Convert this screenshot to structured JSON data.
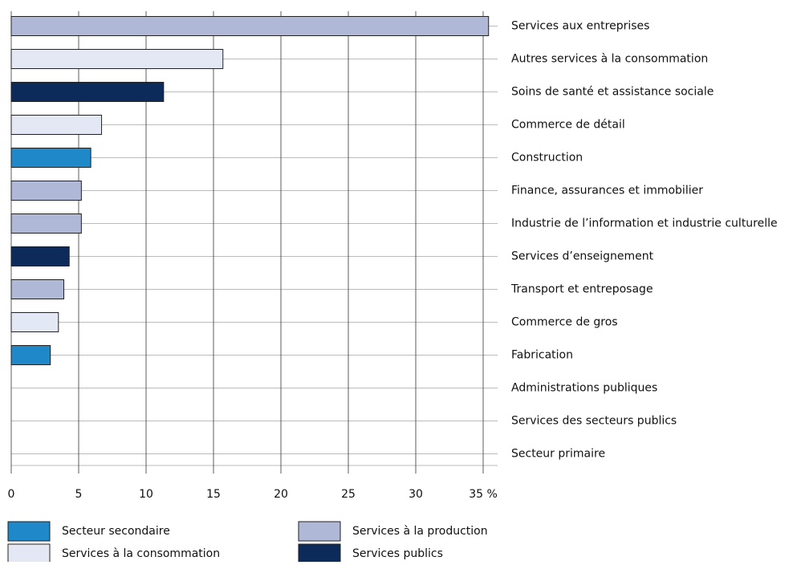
{
  "chart_data": {
    "type": "bar",
    "orientation": "horizontal",
    "categories": [
      "Services aux entreprises",
      "Autres services à la consommation",
      "Soins de santé et assistance sociale",
      "Commerce de détail",
      "Construction",
      "Finance, assurances et immobilier",
      "Industrie de l’information et industrie culturelle",
      "Services d’enseignement",
      "Transport et entreposage",
      "Commerce de gros",
      "Fabrication",
      "Administrations publiques",
      "Services des secteurs publics",
      "Secteur primaire"
    ],
    "series": [
      {
        "name": "Secteur secondaire",
        "color": "#1e88c8",
        "values": [
          null,
          null,
          null,
          null,
          5.9,
          null,
          null,
          null,
          null,
          null,
          2.9,
          null,
          null,
          null
        ]
      },
      {
        "name": "Services à la production",
        "color": "#b0b8d8",
        "values": [
          35.4,
          null,
          null,
          null,
          null,
          5.2,
          5.2,
          null,
          3.9,
          null,
          null,
          null,
          null,
          null
        ]
      },
      {
        "name": "Services à la consommation",
        "color": "#e4e8f4",
        "values": [
          null,
          15.7,
          null,
          6.7,
          null,
          null,
          null,
          null,
          null,
          3.5,
          null,
          null,
          null,
          null
        ]
      },
      {
        "name": "Services publics",
        "color": "#0c2a5a",
        "values": [
          null,
          null,
          11.3,
          null,
          null,
          null,
          null,
          4.3,
          null,
          null,
          null,
          null,
          null,
          null
        ]
      }
    ],
    "xlim": [
      0,
      35
    ],
    "xticks": [
      0,
      5,
      10,
      15,
      20,
      25,
      30,
      {
        "value": 35,
        "label": "35 %"
      }
    ],
    "grid": true
  }
}
